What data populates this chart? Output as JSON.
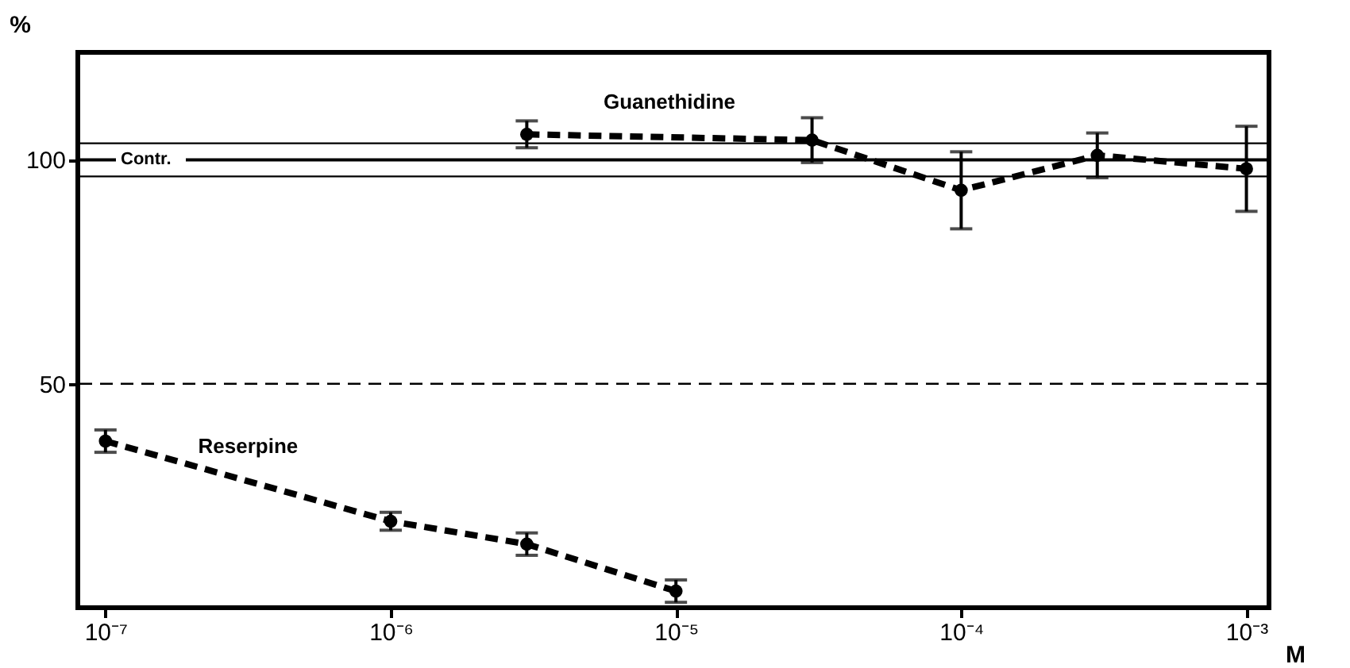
{
  "chart_data": {
    "type": "line",
    "xlabel": "M",
    "ylabel": "%",
    "log": "x",
    "xlim": [
      8e-08,
      0.0012
    ],
    "ylim": [
      0,
      124
    ],
    "xticks": [
      {
        "value": 1e-07,
        "label": "10⁻⁷"
      },
      {
        "value": 1e-06,
        "label": "10⁻⁶"
      },
      {
        "value": 1e-05,
        "label": "10⁻⁵"
      },
      {
        "value": 0.0001,
        "label": "10⁻⁴"
      },
      {
        "value": 0.001,
        "label": "10⁻³"
      }
    ],
    "yticks": [
      50,
      100
    ],
    "grid": false,
    "legend": false,
    "marker": "circle",
    "line_style": "dashed",
    "series": [
      {
        "name": "Reserpine",
        "color": "#000000",
        "x": [
          1e-07,
          1e-06,
          3e-06,
          1e-05
        ],
        "values": [
          37.2,
          19.3,
          14.2,
          3.7
        ],
        "errors": [
          2.5,
          2,
          2.5,
          2.5
        ]
      },
      {
        "name": "Guanethidine",
        "color": "#000000",
        "x": [
          3e-06,
          3e-05,
          0.0001,
          0.0003,
          0.001
        ],
        "values": [
          105.7,
          104.4,
          93.2,
          101,
          98
        ],
        "errors": [
          3,
          5,
          8.6,
          5,
          9.5
        ]
      }
    ],
    "ref_lines": [
      {
        "axis": "y",
        "value": 100,
        "label": "Contr.",
        "line_style": "solid",
        "color": "#000000"
      },
      {
        "axis": "y",
        "value": 103.7,
        "line_style": "solid",
        "color": "#000000"
      },
      {
        "axis": "y",
        "value": 96.3,
        "line_style": "solid",
        "color": "#000000"
      },
      {
        "axis": "y",
        "value": 50,
        "line_style": "dashed",
        "color": "#000000"
      }
    ]
  }
}
